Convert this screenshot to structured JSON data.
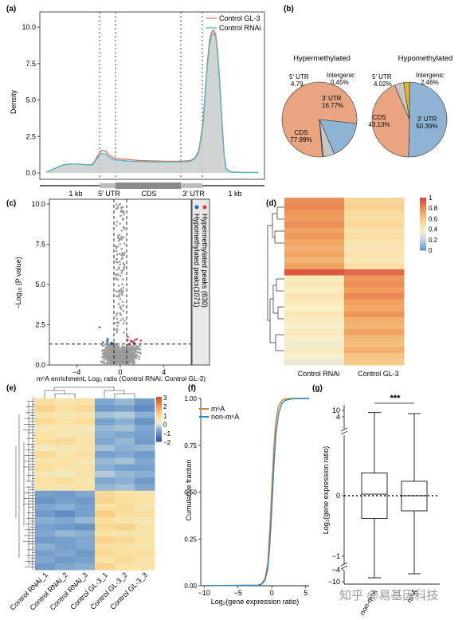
{
  "panels": {
    "a": "(a)",
    "b": "(b)",
    "c": "(c)",
    "d": "(d)",
    "e": "(e)",
    "f": "(f)",
    "g": "(g)"
  },
  "colors": {
    "gl3_red": "#e8675b",
    "rnai_teal": "#4cb8bf",
    "fill_gray": "#c9cdcc",
    "cds_salmon": "#e9a582",
    "utr3_blue": "#8fb3d3",
    "utr5_gray": "#c6c6c6",
    "intergenic_yellow": "#e7b527",
    "hyper_red": "#d23a4c",
    "hypo_blue": "#2c67ac",
    "m6a_orange": "#e07a27",
    "nonm6a_blue": "#2b86c7"
  },
  "watermark": "知乎 @易基因科技",
  "chart_data": [
    {
      "id": "a",
      "type": "area",
      "ylabel": "Density",
      "yticks": [
        "0.0",
        "2.5",
        "5.0",
        "7.5",
        "10.0"
      ],
      "ylim": [
        0,
        10.5
      ],
      "legend": [
        "Control GL-3",
        "Control RNAi"
      ],
      "legend_position": "top-right",
      "regions": [
        "1 kb",
        "5′ UTR",
        "CDS",
        "3′ UTR",
        "1 kb"
      ],
      "x": [
        0,
        4,
        8,
        12,
        16,
        20,
        22,
        24,
        26,
        28,
        30,
        32,
        36,
        40,
        44,
        48,
        52,
        56,
        60,
        64,
        68,
        70,
        72,
        74,
        75,
        76,
        77,
        78,
        79,
        80,
        81,
        82,
        83,
        84,
        85,
        86,
        88,
        90,
        92,
        94,
        96,
        98,
        100
      ],
      "series": [
        {
          "name": "Control GL-3",
          "values": [
            0.05,
            0.3,
            0.55,
            0.62,
            0.6,
            0.55,
            0.6,
            1.1,
            1.55,
            1.5,
            1.2,
            1.0,
            0.95,
            0.9,
            0.85,
            0.83,
            0.82,
            0.8,
            0.8,
            0.8,
            0.85,
            1.0,
            1.5,
            3.5,
            5.5,
            7.5,
            9.0,
            9.65,
            9.8,
            9.5,
            8.2,
            6.0,
            3.5,
            1.2,
            0.3,
            0.15,
            0.05,
            0.05,
            0.03,
            0.03,
            0.03,
            0.03,
            0.03
          ]
        },
        {
          "name": "Control RNAi",
          "values": [
            0.05,
            0.3,
            0.55,
            0.62,
            0.6,
            0.55,
            0.55,
            1.0,
            1.35,
            1.3,
            1.05,
            0.9,
            0.85,
            0.8,
            0.78,
            0.77,
            0.76,
            0.75,
            0.75,
            0.75,
            0.8,
            0.95,
            1.4,
            3.3,
            5.3,
            7.3,
            8.7,
            9.4,
            9.6,
            9.35,
            8.0,
            5.8,
            3.3,
            1.1,
            0.28,
            0.15,
            0.05,
            0.05,
            0.03,
            0.03,
            0.03,
            0.03,
            0.03
          ]
        }
      ]
    },
    {
      "id": "b1",
      "type": "pie",
      "title": "Hypermethylated",
      "slices": [
        {
          "label": "CDS",
          "value": 77.99,
          "text": "77.99%"
        },
        {
          "label": "3′ UTR",
          "value": 16.77,
          "text": "16.77%"
        },
        {
          "label": "5′ UTR",
          "value": 4.79,
          "text": "4.79"
        },
        {
          "label": "Intergenic",
          "value": 0.45,
          "text": "0.45%"
        }
      ]
    },
    {
      "id": "b2",
      "type": "pie",
      "title": "Hypomethylated",
      "slices": [
        {
          "label": "3′ UTR",
          "value": 50.39,
          "text": "50.39%"
        },
        {
          "label": "CDS",
          "value": 43.13,
          "text": "43.13%"
        },
        {
          "label": "5′ UTR",
          "value": 4.02,
          "text": "4.02%"
        },
        {
          "label": "Intergenic",
          "value": 2.46,
          "text": "2.46%"
        }
      ]
    },
    {
      "id": "c",
      "type": "scatter",
      "xlabel": "m⁶A enrichment, Log₂ ratio (Control RNAi: Control GL-3)",
      "ylabel": "−Log₁₀ (P value)",
      "xticks": [
        -4,
        0,
        4
      ],
      "yticks": [
        "0.0",
        "2.5",
        "5.0",
        "7.5",
        "10.0"
      ],
      "xlim": [
        -6.5,
        6.5
      ],
      "ylim": [
        0,
        10.3
      ],
      "thresholds": {
        "x": [
          -0.585,
          0.585
        ],
        "y": 1.3
      },
      "legend": [
        "Hypermethylated peaks (630)",
        "Hypomethylated peaks(1071)"
      ],
      "legend_position": "right"
    },
    {
      "id": "d",
      "type": "heatmap",
      "columns": [
        "Control RNAi",
        "Control GL-3"
      ],
      "colorbar": [
        "1",
        "0.8",
        "0.6",
        "0.4",
        "0.2",
        "0"
      ],
      "rows": [
        [
          0.8,
          0.55
        ],
        [
          0.82,
          0.57
        ],
        [
          0.78,
          0.52
        ],
        [
          0.76,
          0.5
        ],
        [
          0.8,
          0.54
        ],
        [
          0.74,
          0.48
        ],
        [
          0.77,
          0.5
        ],
        [
          0.72,
          0.45
        ],
        [
          0.7,
          0.44
        ],
        [
          0.73,
          0.46
        ],
        [
          0.68,
          0.42
        ],
        [
          0.75,
          0.5
        ],
        [
          0.95,
          0.9
        ],
        [
          0.4,
          0.78
        ],
        [
          0.42,
          0.8
        ],
        [
          0.38,
          0.76
        ],
        [
          0.44,
          0.82
        ],
        [
          0.4,
          0.75
        ],
        [
          0.36,
          0.72
        ],
        [
          0.42,
          0.78
        ],
        [
          0.38,
          0.7
        ],
        [
          0.34,
          0.68
        ],
        [
          0.4,
          0.74
        ],
        [
          0.36,
          0.66
        ],
        [
          0.32,
          0.64
        ],
        [
          0.38,
          0.7
        ],
        [
          0.35,
          0.62
        ],
        [
          0.3,
          0.6
        ]
      ]
    },
    {
      "id": "e",
      "type": "heatmap",
      "columns": [
        "Control RNAi_1",
        "Control RNAi_2",
        "Control RNAi_3",
        "Control GL-3_1",
        "Control GL-3_2",
        "Control GL-3_3"
      ],
      "colorbar": [
        "3",
        "2",
        "1",
        "0",
        "−1",
        "−2"
      ],
      "rows": [
        [
          0.8,
          0.6,
          0.7,
          -0.8,
          -0.6,
          -1.0
        ],
        [
          1.0,
          0.8,
          0.9,
          -1.0,
          -0.9,
          -1.2
        ],
        [
          0.6,
          0.5,
          0.6,
          -0.5,
          -0.4,
          -0.7
        ],
        [
          0.9,
          0.7,
          0.8,
          -0.9,
          -0.7,
          -1.1
        ],
        [
          0.5,
          0.6,
          0.4,
          -0.6,
          -0.5,
          -0.8
        ],
        [
          0.7,
          0.5,
          0.6,
          -0.7,
          -0.8,
          -0.9
        ],
        [
          0.8,
          0.9,
          0.7,
          -0.8,
          -0.6,
          -1.0
        ],
        [
          0.4,
          0.5,
          0.6,
          -0.5,
          -0.7,
          -0.6
        ],
        [
          0.9,
          0.6,
          0.8,
          -0.9,
          -0.8,
          -1.0
        ],
        [
          0.6,
          0.7,
          0.5,
          -0.6,
          -0.5,
          -0.8
        ],
        [
          0.8,
          0.6,
          0.7,
          -0.7,
          -0.9,
          -0.9
        ],
        [
          0.5,
          0.4,
          0.6,
          -0.4,
          -0.6,
          -0.7
        ],
        [
          0.7,
          0.8,
          0.6,
          -0.8,
          -0.7,
          -1.0
        ],
        [
          0.6,
          0.5,
          0.7,
          -0.6,
          -0.5,
          -0.8
        ],
        [
          -0.9,
          -1.0,
          -0.8,
          0.9,
          0.7,
          0.6
        ],
        [
          -1.1,
          -0.9,
          -1.0,
          1.0,
          0.8,
          0.7
        ],
        [
          -0.8,
          -0.7,
          -0.9,
          0.7,
          0.9,
          0.5
        ],
        [
          -1.0,
          -1.2,
          -0.9,
          1.1,
          0.8,
          0.8
        ],
        [
          -0.7,
          -0.8,
          -0.6,
          0.8,
          0.6,
          0.5
        ],
        [
          -0.9,
          -1.0,
          -1.1,
          0.9,
          1.0,
          0.7
        ],
        [
          -0.8,
          -0.6,
          -0.7,
          0.7,
          0.6,
          0.6
        ],
        [
          -1.0,
          -0.9,
          -0.8,
          1.0,
          0.9,
          0.7
        ],
        [
          -0.7,
          -0.9,
          -0.8,
          0.8,
          0.7,
          0.6
        ],
        [
          -0.9,
          -0.8,
          -1.0,
          0.9,
          0.8,
          0.8
        ],
        [
          -0.8,
          -1.0,
          -0.9,
          0.7,
          0.9,
          0.6
        ],
        [
          -1.0,
          -0.8,
          -0.7,
          1.0,
          0.7,
          0.7
        ]
      ]
    },
    {
      "id": "f",
      "type": "line",
      "xlabel": "Log₂(gene expression ratio)",
      "ylabel": "Cumulative fraction",
      "xticks": [
        -10,
        -5,
        0,
        5
      ],
      "yticks": [
        "0.00",
        "0.25",
        "0.50",
        "0.75",
        "1.00"
      ],
      "xlim": [
        -10.5,
        5.5
      ],
      "ylim": [
        0,
        1
      ],
      "series": [
        {
          "name": "m⁶A",
          "x": [
            -10.5,
            -2,
            -1.5,
            -1,
            -0.6,
            -0.3,
            0,
            0.3,
            0.6,
            1,
            1.5,
            2,
            3,
            5.5
          ],
          "values": [
            0,
            0.003,
            0.01,
            0.04,
            0.12,
            0.3,
            0.52,
            0.74,
            0.88,
            0.96,
            0.99,
            0.997,
            1,
            1
          ]
        },
        {
          "name": "non-m⁶A",
          "x": [
            -10.5,
            -2,
            -1.5,
            -1,
            -0.6,
            -0.3,
            0,
            0.3,
            0.6,
            1,
            1.5,
            2,
            3,
            5.5
          ],
          "values": [
            0,
            0.003,
            0.008,
            0.03,
            0.09,
            0.22,
            0.42,
            0.64,
            0.81,
            0.92,
            0.975,
            0.99,
            0.998,
            1
          ]
        }
      ]
    },
    {
      "id": "g",
      "type": "box",
      "ylabel": "Log₂(gene expression ratio)",
      "yticks_top": [
        "10",
        "4"
      ],
      "yticks_mid": [
        "0"
      ],
      "yticks_bottom": [
        "−1",
        "−4",
        "−10"
      ],
      "categories": [
        "non-m⁶A",
        "m⁶A"
      ],
      "significance": "***",
      "boxes": [
        {
          "name": "non-m⁶A",
          "min": -8,
          "q1": -0.3,
          "median": 0.02,
          "q3": 0.3,
          "max": 8
        },
        {
          "name": "m⁶A",
          "min": -6,
          "q1": -0.2,
          "median": 0.0,
          "q3": 0.19,
          "max": 7
        }
      ]
    }
  ]
}
